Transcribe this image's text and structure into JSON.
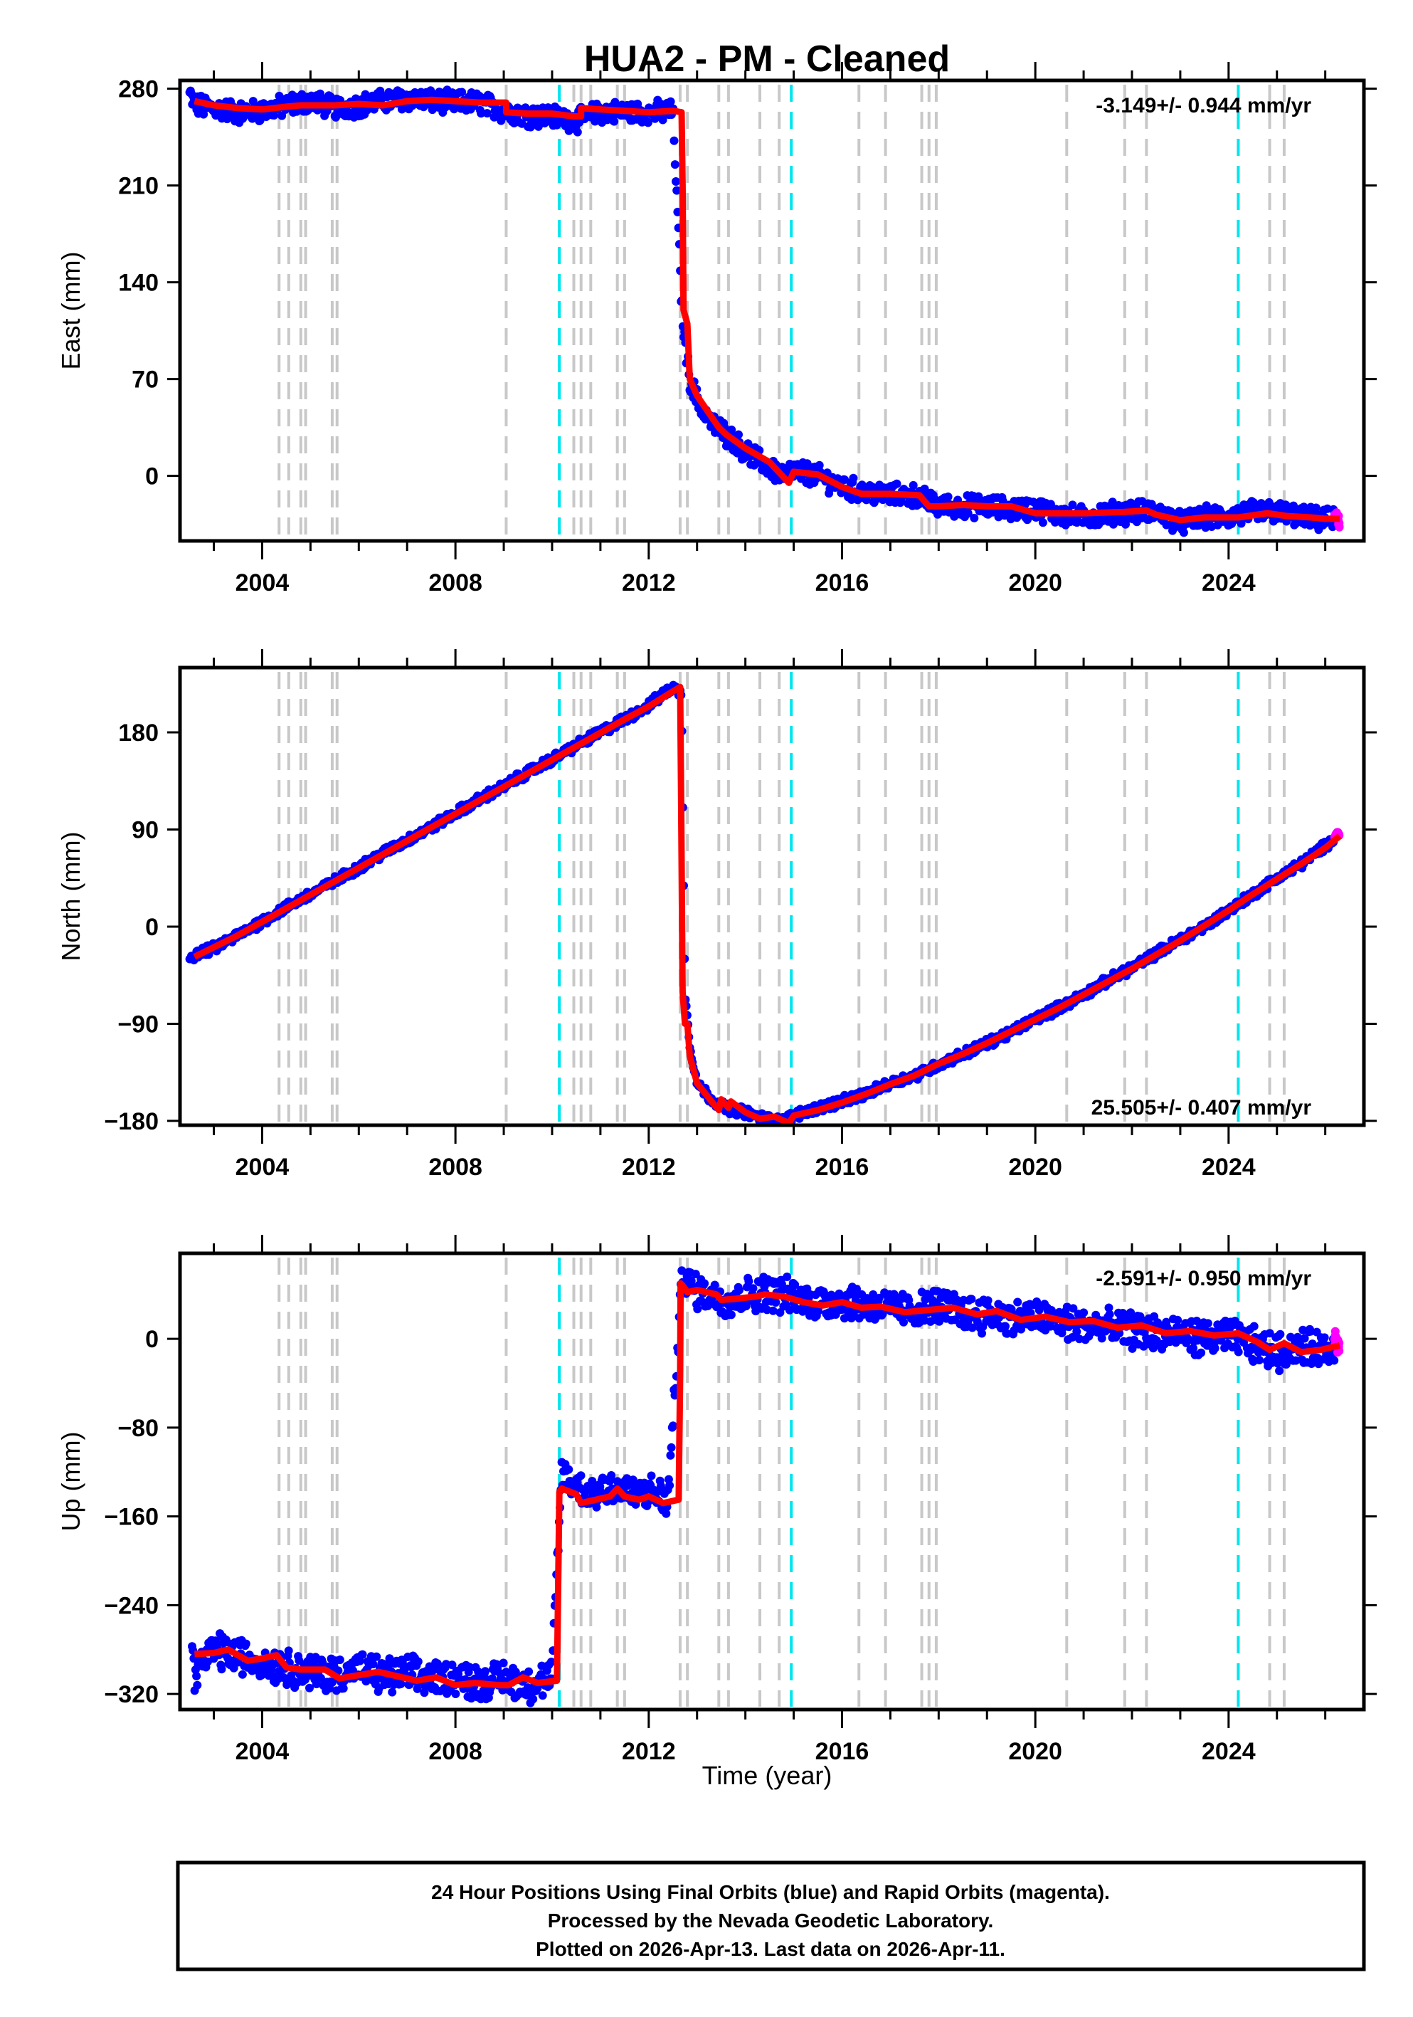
{
  "chart_data": {
    "type": "scatter",
    "title": "HUA2  - PM - Cleaned",
    "xlabel": "Time (year)",
    "xlim": [
      2002.3,
      2026.8
    ],
    "xticks": [
      2004,
      2008,
      2012,
      2016,
      2020,
      2024
    ],
    "x_minor_step": 1,
    "event_lines": {
      "gray_dashed": [
        2004.35,
        2004.55,
        2004.8,
        2004.9,
        2005.45,
        2005.55,
        2009.05,
        2010.45,
        2010.6,
        2010.8,
        2011.35,
        2011.5,
        2012.65,
        2012.8,
        2013.45,
        2013.65,
        2014.3,
        2014.7,
        2016.35,
        2016.9,
        2017.65,
        2017.8,
        2017.95,
        2020.65,
        2021.85,
        2022.3,
        2024.85,
        2025.15
      ],
      "cyan_dashed": [
        2010.15,
        2014.95,
        2024.2
      ]
    },
    "panels": [
      {
        "name": "east",
        "ylabel": "East (mm)",
        "ylim": [
          -47,
          286
        ],
        "yticks": [
          0,
          70,
          140,
          210,
          280
        ],
        "rate_label": "-3.149+/- 0.944 mm/yr",
        "rate_position": "top-right",
        "series": [
          {
            "name": "Final Orbits",
            "color": "#0000ff",
            "x": [
              2002.5,
              2002.6,
              2003.0,
              2003.5,
              2004.0,
              2004.5,
              2005.0,
              2005.5,
              2006.0,
              2006.5,
              2007.0,
              2007.5,
              2008.0,
              2008.5,
              2009.0,
              2009.5,
              2010.0,
              2010.5,
              2011.0,
              2011.5,
              2012.0,
              2012.5,
              2012.68,
              2012.75,
              2012.85,
              2013.0,
              2013.3,
              2013.6,
              2014.0,
              2014.4,
              2014.8,
              2015.0,
              2015.5,
              2016.0,
              2016.5,
              2017.0,
              2017.5,
              2018.0,
              2018.5,
              2019.0,
              2019.5,
              2020.0,
              2020.5,
              2021.0,
              2021.5,
              2022.0,
              2022.5,
              2023.0,
              2023.5,
              2024.0,
              2024.5,
              2025.0,
              2025.5,
              2026.0,
              2026.2
            ],
            "y": [
              276,
              268,
              266,
              263,
              264,
              268,
              271,
              266,
              268,
              271,
              273,
              271,
              270,
              270,
              264,
              261,
              260,
              257,
              263,
              263,
              263,
              264,
              125,
              95,
              70,
              55,
              38,
              30,
              18,
              8,
              0,
              4,
              0,
              -8,
              -12,
              -14,
              -14,
              -22,
              -22,
              -22,
              -24,
              -24,
              -28,
              -30,
              -27,
              -26,
              -26,
              -34,
              -30,
              -30,
              -26,
              -26,
              -30,
              -32,
              -31
            ]
          },
          {
            "name": "Rapid Orbits",
            "color": "#ff00ff",
            "x": [
              2026.22,
              2026.26,
              2026.28
            ],
            "y": [
              -28,
              -31,
              -34
            ]
          },
          {
            "name": "Model",
            "color": "#ff0000",
            "type": "line",
            "x": [
              2002.6,
              2003.0,
              2003.5,
              2004.0,
              2004.5,
              2004.8,
              2005.5,
              2006.0,
              2006.5,
              2007.0,
              2007.5,
              2008.0,
              2008.5,
              2009.05,
              2009.05,
              2009.5,
              2010.0,
              2010.45,
              2010.6,
              2010.6,
              2011.0,
              2011.5,
              2012.0,
              2012.5,
              2012.68,
              2012.7,
              2012.72,
              2012.8,
              2012.85,
              2013.0,
              2013.45,
              2013.6,
              2014.0,
              2014.5,
              2014.9,
              2015.0,
              2015.5,
              2016.0,
              2016.4,
              2017.0,
              2017.6,
              2017.8,
              2018.0,
              2018.5,
              2019.0,
              2019.5,
              2020.0,
              2020.6,
              2021.0,
              2021.85,
              2022.3,
              2022.5,
              2023.0,
              2023.5,
              2024.2,
              2024.8,
              2025.2,
              2025.7,
              2026.0,
              2026.3
            ],
            "y": [
              271,
              268,
              266,
              265,
              267,
              268,
              268,
              269,
              268,
              271,
              272,
              271,
              270,
              270,
              263,
              262,
              262,
              260,
              260,
              266,
              265,
              264,
              263,
              264,
              263,
              210,
              120,
              110,
              70,
              58,
              35,
              30,
              20,
              10,
              -5,
              3,
              1,
              -8,
              -13,
              -13,
              -14,
              -22,
              -22,
              -21,
              -22,
              -22,
              -27,
              -27,
              -27,
              -26,
              -25,
              -28,
              -32,
              -30,
              -30,
              -27,
              -29,
              -30,
              -31,
              -31
            ]
          }
        ]
      },
      {
        "name": "north",
        "ylabel": "North (mm)",
        "ylim": [
          -184,
          240
        ],
        "yticks": [
          -180,
          -90,
          0,
          90,
          180
        ],
        "rate_label": "25.505+/- 0.407 mm/yr",
        "rate_position": "bottom-right",
        "series": [
          {
            "name": "Final Orbits",
            "color": "#0000ff",
            "x": [
              2002.5,
              2003.0,
              2003.5,
              2004.0,
              2004.5,
              2005.0,
              2005.5,
              2006.0,
              2006.5,
              2007.0,
              2007.5,
              2008.0,
              2008.5,
              2009.0,
              2009.5,
              2010.0,
              2010.5,
              2011.0,
              2011.5,
              2012.0,
              2012.5,
              2012.68,
              2012.75,
              2012.85,
              2013.0,
              2013.3,
              2013.6,
              2014.0,
              2014.4,
              2014.8,
              2015.0,
              2015.5,
              2016.0,
              2016.5,
              2017.0,
              2017.5,
              2018.0,
              2018.5,
              2019.0,
              2019.5,
              2020.0,
              2020.5,
              2021.0,
              2021.5,
              2022.0,
              2022.5,
              2023.0,
              2023.5,
              2024.0,
              2024.5,
              2025.0,
              2025.5,
              2026.0,
              2026.2
            ],
            "y": [
              -28,
              -20,
              -8,
              5,
              18,
              30,
              42,
              55,
              68,
              80,
              92,
              105,
              118,
              130,
              143,
              155,
              168,
              180,
              192,
              205,
              222,
              215,
              -60,
              -110,
              -145,
              -160,
              -168,
              -172,
              -178,
              -180,
              -175,
              -168,
              -162,
              -155,
              -145,
              -138,
              -128,
              -118,
              -108,
              -98,
              -85,
              -75,
              -63,
              -50,
              -38,
              -25,
              -12,
              0,
              15,
              30,
              45,
              58,
              75,
              83
            ]
          },
          {
            "name": "Rapid Orbits",
            "color": "#ff00ff",
            "x": [
              2026.22,
              2026.26
            ],
            "y": [
              84,
              86
            ]
          },
          {
            "name": "Model",
            "color": "#ff0000",
            "type": "line",
            "x": [
              2002.6,
              2003.5,
              2004.5,
              2005.5,
              2006.5,
              2007.5,
              2008.5,
              2009.5,
              2010.5,
              2011.5,
              2012.0,
              2012.5,
              2012.65,
              2012.67,
              2012.7,
              2012.75,
              2012.8,
              2012.85,
              2013.0,
              2013.3,
              2013.45,
              2013.5,
              2013.65,
              2013.7,
              2014.0,
              2014.3,
              2014.6,
              2014.9,
              2015.0,
              2015.5,
              2016.0,
              2016.5,
              2017.0,
              2017.5,
              2018.0,
              2018.5,
              2019.0,
              2019.5,
              2020.0,
              2020.5,
              2021.0,
              2021.5,
              2022.0,
              2022.5,
              2023.0,
              2023.5,
              2024.0,
              2024.5,
              2025.0,
              2025.5,
              2026.0,
              2026.3
            ],
            "y": [
              -28,
              -8,
              17,
              42,
              67,
              92,
              117,
              142,
              167,
              192,
              204,
              218,
              222,
              120,
              -60,
              -90,
              -90,
              -120,
              -145,
              -162,
              -170,
              -160,
              -168,
              -162,
              -172,
              -178,
              -176,
              -182,
              -175,
              -170,
              -163,
              -155,
              -146,
              -138,
              -127,
              -118,
              -108,
              -97,
              -86,
              -75,
              -63,
              -51,
              -39,
              -26,
              -13,
              1,
              15,
              30,
              44,
              58,
              73,
              84
            ]
          }
        ]
      },
      {
        "name": "up",
        "ylabel": "Up (mm)",
        "ylim": [
          -334,
          77
        ],
        "yticks": [
          -320,
          -240,
          -160,
          -80,
          0
        ],
        "rate_label": "-2.591+/- 0.950 mm/yr",
        "rate_position": "top-right",
        "series": [
          {
            "name": "Final Orbits",
            "color": "#0000ff",
            "x": [
              2002.55,
              2002.6,
              2003.0,
              2003.5,
              2004.0,
              2004.5,
              2005.0,
              2005.5,
              2006.0,
              2006.5,
              2007.0,
              2007.5,
              2008.0,
              2008.5,
              2009.0,
              2009.5,
              2010.0,
              2010.2,
              2010.4,
              2010.8,
              2011.2,
              2011.6,
              2012.0,
              2012.4,
              2012.7,
              2012.9,
              2013.3,
              2013.7,
              2014.1,
              2014.5,
              2015.0,
              2015.5,
              2016.0,
              2016.5,
              2017.0,
              2017.5,
              2018.0,
              2018.5,
              2019.0,
              2019.5,
              2020.0,
              2020.5,
              2021.0,
              2021.5,
              2022.0,
              2022.5,
              2023.0,
              2023.5,
              2024.0,
              2024.5,
              2025.0,
              2025.5,
              2026.0,
              2026.2
            ],
            "y": [
              -282,
              -300,
              -280,
              -285,
              -292,
              -296,
              -300,
              -302,
              -298,
              -304,
              -302,
              -306,
              -304,
              -310,
              -306,
              -312,
              -305,
              -120,
              -130,
              -140,
              -132,
              -140,
              -138,
              -145,
              60,
              45,
              38,
              35,
              40,
              42,
              38,
              32,
              35,
              30,
              28,
              25,
              30,
              24,
              22,
              18,
              20,
              15,
              12,
              10,
              8,
              5,
              4,
              0,
              2,
              -5,
              -12,
              -8,
              -8,
              -6
            ]
          },
          {
            "name": "Rapid Orbits",
            "color": "#ff00ff",
            "x": [
              2026.22,
              2026.25,
              2026.28
            ],
            "y": [
              0,
              -5,
              -10
            ]
          },
          {
            "name": "Model",
            "color": "#ff0000",
            "type": "line",
            "x": [
              2002.6,
              2003.0,
              2003.3,
              2003.7,
              2004.0,
              2004.3,
              2004.5,
              2004.8,
              2005.0,
              2005.3,
              2005.6,
              2006.0,
              2006.4,
              2006.8,
              2007.2,
              2007.6,
              2008.0,
              2008.4,
              2008.9,
              2009.1,
              2009.4,
              2009.7,
              2010.1,
              2010.15,
              2010.2,
              2010.5,
              2010.6,
              2010.9,
              2011.2,
              2011.35,
              2011.5,
              2011.8,
              2012.0,
              2012.3,
              2012.62,
              2012.65,
              2012.66,
              2012.7,
              2012.8,
              2013.0,
              2013.4,
              2013.5,
              2013.8,
              2014.2,
              2014.4,
              2014.8,
              2015.2,
              2015.6,
              2016.0,
              2016.4,
              2016.8,
              2017.3,
              2017.8,
              2018.3,
              2018.8,
              2019.2,
              2019.7,
              2020.2,
              2020.7,
              2021.2,
              2021.7,
              2022.2,
              2022.7,
              2023.2,
              2023.7,
              2024.2,
              2024.6,
              2024.85,
              2025.15,
              2025.5,
              2025.9,
              2026.3
            ],
            "y": [
              -284,
              -283,
              -280,
              -290,
              -288,
              -285,
              -296,
              -298,
              -298,
              -298,
              -306,
              -303,
              -300,
              -304,
              -308,
              -305,
              -312,
              -310,
              -312,
              -312,
              -305,
              -310,
              -308,
              -138,
              -135,
              -140,
              -148,
              -145,
              -142,
              -135,
              -142,
              -145,
              -142,
              -148,
              -145,
              -30,
              50,
              48,
              42,
              44,
              40,
              35,
              36,
              38,
              40,
              38,
              33,
              30,
              33,
              28,
              29,
              24,
              26,
              28,
              22,
              25,
              17,
              20,
              15,
              16,
              10,
              12,
              5,
              7,
              3,
              5,
              -3,
              -10,
              -4,
              -12,
              -10,
              -6
            ]
          }
        ]
      }
    ]
  },
  "footer": {
    "line1": "24 Hour Positions Using Final Orbits (blue) and Rapid Orbits (magenta).",
    "line2": "Processed by the Nevada Geodetic Laboratory.",
    "line3": "Plotted on 2026-Apr-13. Last data on 2026-Apr-11."
  },
  "colors": {
    "final": "#0000ff",
    "rapid": "#ff00ff",
    "model": "#ff0000",
    "event_gray": "#c8c8c8",
    "event_cyan": "#00e5ee"
  }
}
